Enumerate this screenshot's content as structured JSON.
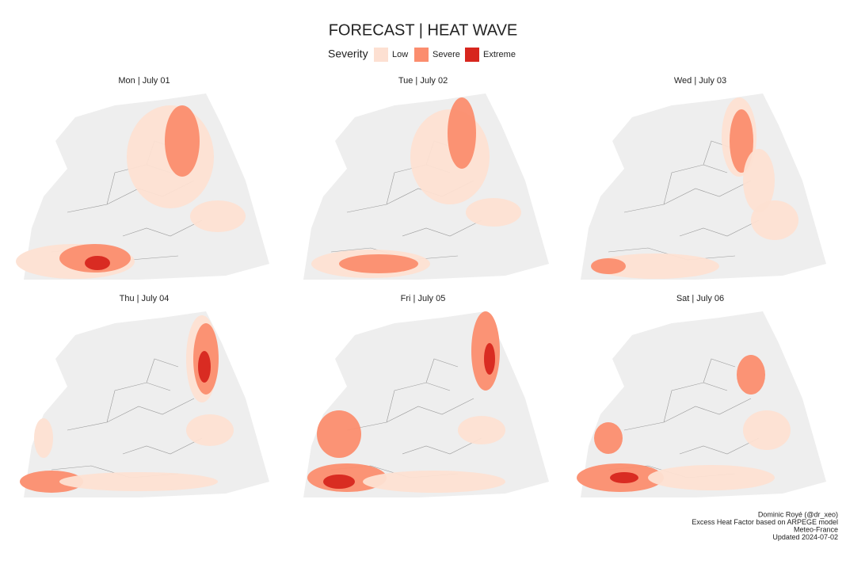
{
  "header": {
    "title": "FORECAST | HEAT WAVE"
  },
  "legend": {
    "title": "Severity",
    "items": [
      {
        "label": "Low",
        "color": "#fde0d2"
      },
      {
        "label": "Severe",
        "color": "#fb8d6e"
      },
      {
        "label": "Extreme",
        "color": "#d7261e"
      }
    ]
  },
  "panels": [
    {
      "title": "Mon | July 01"
    },
    {
      "title": "Tue | July 02"
    },
    {
      "title": "Wed | July 03"
    },
    {
      "title": "Thu | July 04"
    },
    {
      "title": "Fri | July 05"
    },
    {
      "title": "Sat | July 06"
    }
  ],
  "caption": {
    "lines": [
      "Dominic Royé (@dr_xeo)",
      "Excess Heat Factor based on ARPEGE model",
      "Meteo-France",
      "Updated 2024-07-02"
    ]
  }
}
